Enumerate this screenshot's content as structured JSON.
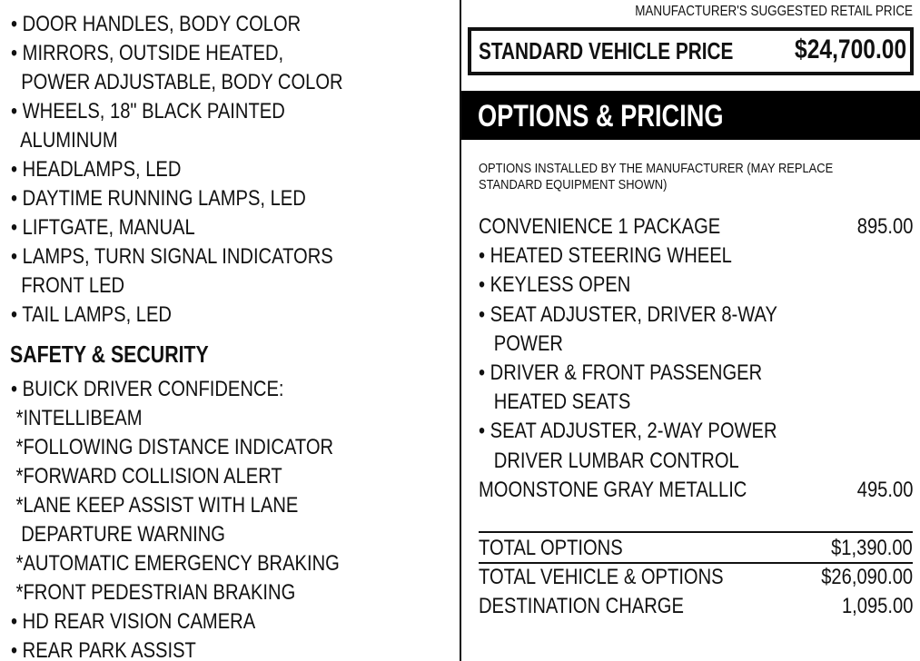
{
  "left": {
    "lines_a": [
      "• DOOR HANDLES, BODY COLOR",
      "• MIRRORS, OUTSIDE HEATED,",
      "  POWER ADJUSTABLE, BODY COLOR",
      "• WHEELS, 18\" BLACK PAINTED",
      "  ALUMINUM",
      "• HEADLAMPS, LED",
      "• DAYTIME RUNNING LAMPS, LED",
      "• LIFTGATE, MANUAL",
      "• LAMPS, TURN SIGNAL INDICATORS",
      "  FRONT LED",
      "• TAIL LAMPS, LED"
    ],
    "heading": "SAFETY & SECURITY",
    "lines_b": [
      "• BUICK DRIVER CONFIDENCE:",
      " *INTELLIBEAM",
      " *FOLLOWING DISTANCE INDICATOR",
      " *FORWARD COLLISION ALERT",
      " *LANE KEEP ASSIST WITH LANE",
      "  DEPARTURE WARNING",
      " *AUTOMATIC EMERGENCY BRAKING",
      " *FRONT PEDESTRIAN BRAKING",
      "• HD REAR VISION CAMERA",
      "• REAR PARK ASSIST"
    ]
  },
  "right": {
    "msrp_label": "MANUFACTURER'S SUGGESTED RETAIL PRICE",
    "standard_label": "STANDARD VEHICLE PRICE",
    "standard_price": "$24,700.00",
    "options_heading": "OPTIONS & PRICING",
    "note_line1": "OPTIONS INSTALLED BY THE MANUFACTURER (MAY REPLACE",
    "note_line2": "STANDARD EQUIPMENT SHOWN)",
    "options": [
      {
        "text": "CONVENIENCE 1 PACKAGE",
        "price": "895.00"
      },
      {
        "text": "• HEATED STEERING WHEEL",
        "price": ""
      },
      {
        "text": "• KEYLESS OPEN",
        "price": ""
      },
      {
        "text": "• SEAT ADJUSTER, DRIVER 8-WAY",
        "price": ""
      },
      {
        "text": "   POWER",
        "price": ""
      },
      {
        "text": "• DRIVER & FRONT PASSENGER",
        "price": ""
      },
      {
        "text": "   HEATED SEATS",
        "price": ""
      },
      {
        "text": "• SEAT ADJUSTER, 2-WAY POWER",
        "price": ""
      },
      {
        "text": "   DRIVER LUMBAR CONTROL",
        "price": ""
      },
      {
        "text": "MOONSTONE GRAY METALLIC",
        "price": "495.00"
      }
    ],
    "totals": [
      {
        "label": "TOTAL OPTIONS",
        "value": "$1,390.00"
      },
      {
        "label": "TOTAL VEHICLE & OPTIONS",
        "value": "$26,090.00"
      },
      {
        "label": "DESTINATION CHARGE",
        "value": "1,095.00"
      }
    ]
  }
}
